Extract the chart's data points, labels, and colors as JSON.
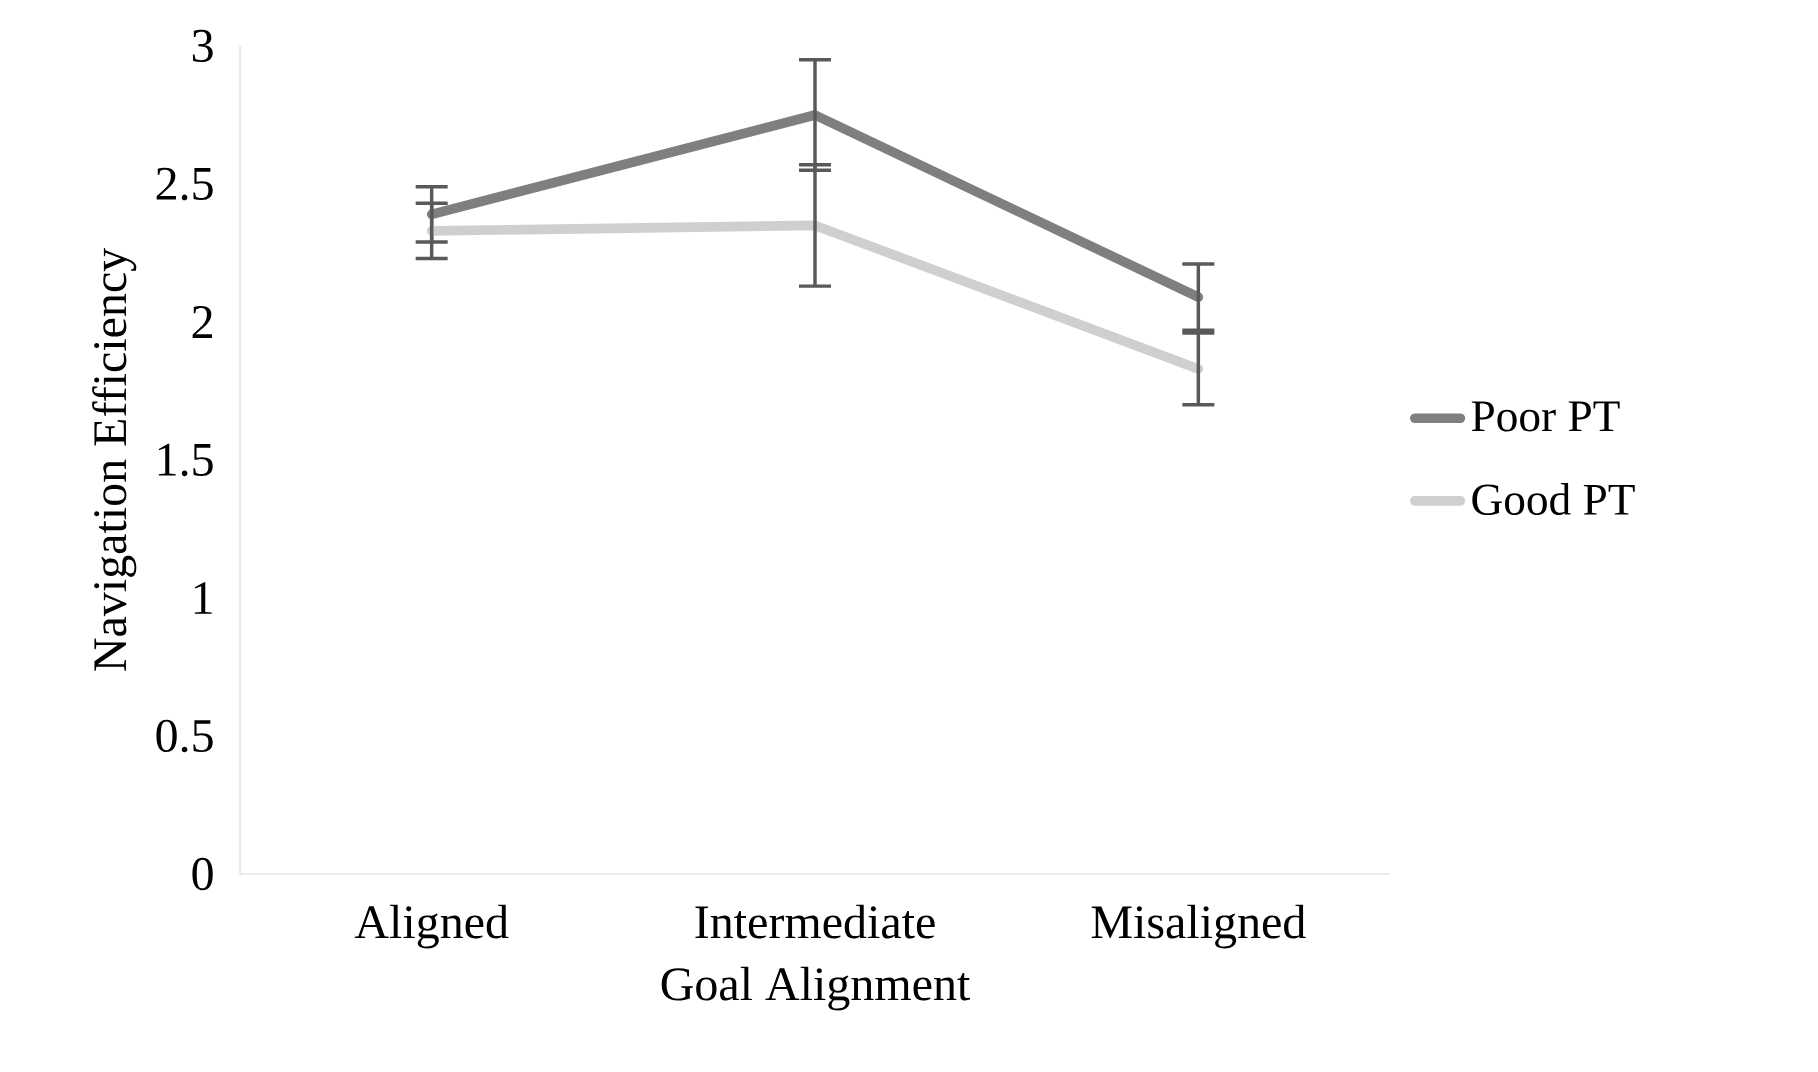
{
  "chart_data": {
    "type": "line",
    "xlabel": "Goal Alignment",
    "ylabel": "Navigation Efficiency",
    "categories": [
      "Aligned",
      "Intermediate",
      "Misaligned"
    ],
    "series": [
      {
        "name": "Poor PT",
        "color": "#7f7f7f",
        "values": [
          2.39,
          2.75,
          2.09
        ],
        "errors": [
          0.1,
          0.2,
          0.12
        ]
      },
      {
        "name": "Good PT",
        "color": "#d0cece",
        "values": [
          2.33,
          2.35,
          1.83
        ],
        "errors": [
          0.1,
          0.22,
          0.13
        ]
      }
    ],
    "ylim": [
      0,
      3
    ],
    "yticks": [
      0,
      0.5,
      1,
      1.5,
      2,
      2.5,
      3
    ],
    "grid": false,
    "legend": "right",
    "marker": "none",
    "line_style": "solid"
  }
}
